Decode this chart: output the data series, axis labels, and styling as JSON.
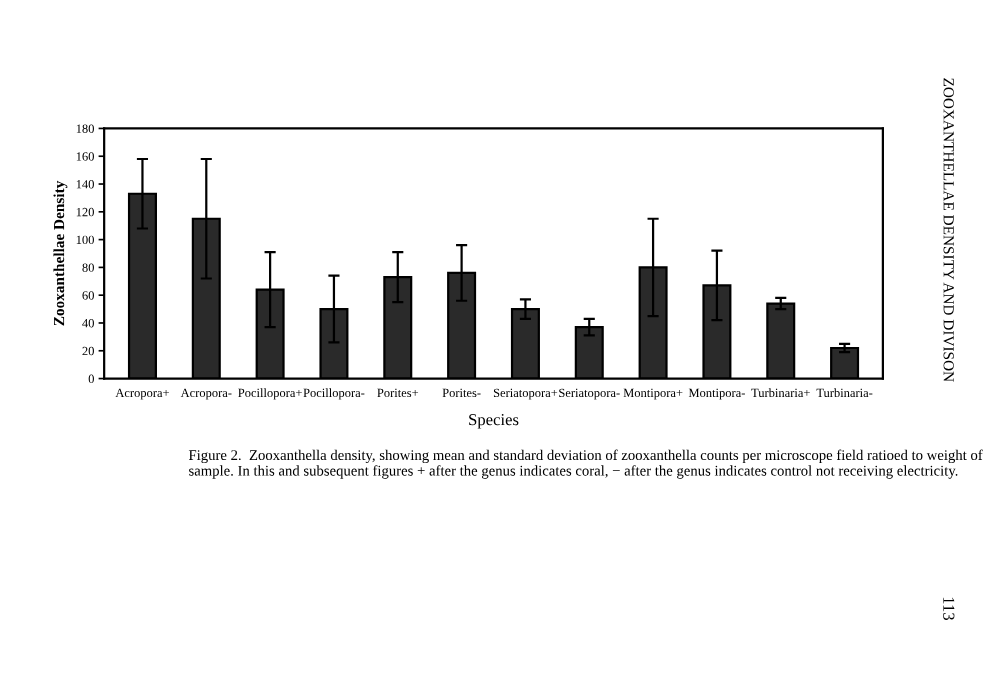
{
  "chart_data": {
    "type": "bar",
    "xlabel": "Species",
    "ylabel": "Zooxanthellae Density",
    "categories": [
      "Acropora+",
      "Acropora-",
      "Pocillopora+",
      "Pocillopora-",
      "Porites+",
      "Porites-",
      "Seriatopora+",
      "Seriatopora-",
      "Montipora+",
      "Montipora-",
      "Turbinaria+",
      "Turbinaria-"
    ],
    "values": [
      133,
      115,
      64,
      50,
      73,
      76,
      50,
      37,
      80,
      67,
      54,
      22
    ],
    "errors": [
      25,
      43,
      27,
      24,
      18,
      20,
      7,
      6,
      35,
      25,
      4,
      3
    ],
    "color": "#2a2a2a",
    "ylim": [
      0,
      180
    ],
    "yticks": [
      0,
      20,
      40,
      60,
      80,
      100,
      120,
      140,
      160,
      180
    ],
    "grid": false,
    "annotations": [
      "Figure 2.  Zooxanthella density, showing mean and standard deviation of zooxanthella counts per microscope field ratioed to weight of sample. In this and subsequent figures + after the genus indicates coral, − after the genus indicates control not receiving electricity.",
      "ZOOXANTHELLAE DENSITY AND DIVISON",
      "113"
    ]
  }
}
